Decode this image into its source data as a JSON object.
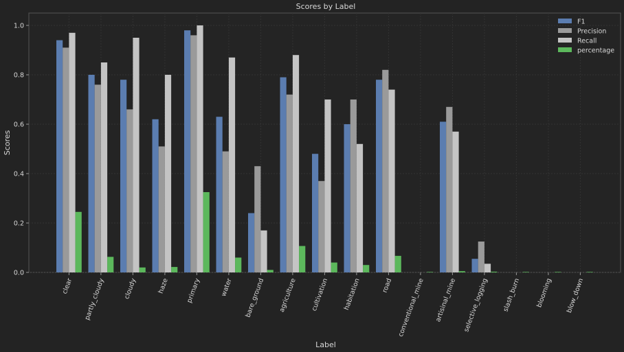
{
  "chart_data": {
    "type": "bar",
    "title": "Scores by Label",
    "xlabel": "Label",
    "ylabel": "Scores",
    "ylim": [
      0,
      1.05
    ],
    "yticks": [
      "0.0",
      "0.2",
      "0.4",
      "0.6",
      "0.8",
      "1.0"
    ],
    "grid": true,
    "legend_position": "top-right",
    "categories": [
      "clear",
      "partly_cloudy",
      "cloudy",
      "haze",
      "primary",
      "water",
      "bare_ground",
      "agriculture",
      "cultivation",
      "habitation",
      "road",
      "conventional_mine",
      "artisinal_mine",
      "selective_logging",
      "slash_burn",
      "blooming",
      "blow_down"
    ],
    "series": [
      {
        "name": "F1",
        "color": "#5b7db0",
        "values": [
          0.94,
          0.8,
          0.78,
          0.62,
          0.98,
          0.63,
          0.24,
          0.79,
          0.48,
          0.6,
          0.78,
          0.0,
          0.61,
          0.055,
          0.0,
          0.0,
          0.0
        ]
      },
      {
        "name": "Precision",
        "color": "#9a9a9a",
        "values": [
          0.91,
          0.76,
          0.66,
          0.51,
          0.96,
          0.49,
          0.43,
          0.72,
          0.37,
          0.7,
          0.82,
          0.0,
          0.67,
          0.125,
          0.0,
          0.0,
          0.0
        ]
      },
      {
        "name": "Recall",
        "color": "#c4c4c4",
        "values": [
          0.97,
          0.85,
          0.95,
          0.8,
          1.0,
          0.87,
          0.17,
          0.88,
          0.7,
          0.52,
          0.74,
          0.0,
          0.57,
          0.035,
          0.0,
          0.0,
          0.0
        ]
      },
      {
        "name": "percentage",
        "color": "#5cb85c",
        "values": [
          0.245,
          0.063,
          0.02,
          0.022,
          0.325,
          0.06,
          0.01,
          0.107,
          0.04,
          0.03,
          0.067,
          0.002,
          0.005,
          0.003,
          0.002,
          0.002,
          0.002
        ]
      }
    ]
  }
}
